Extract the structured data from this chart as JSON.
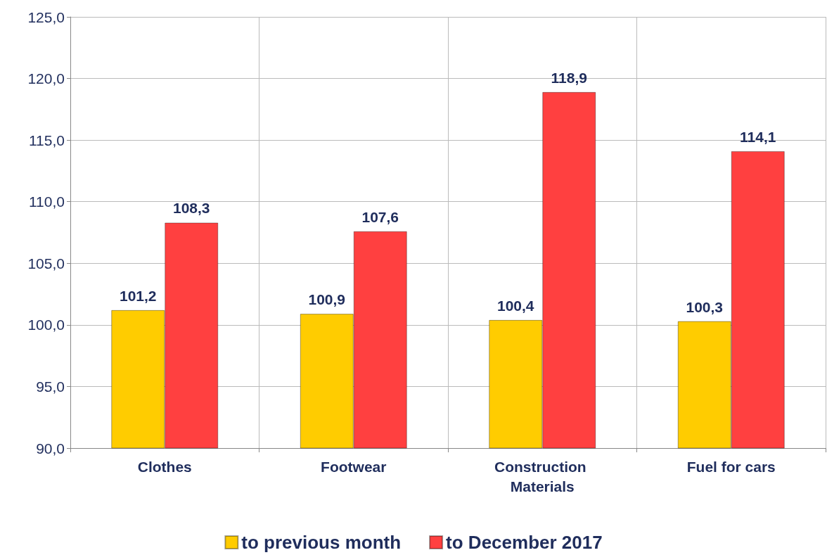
{
  "chart_data": {
    "type": "bar",
    "categories": [
      "Clothes",
      "Footwear",
      "Construction Materials",
      "Fuel for cars"
    ],
    "series": [
      {
        "name": "to previous month",
        "color": "#ffcc00",
        "values": [
          101.2,
          100.9,
          100.4,
          100.3
        ],
        "value_labels": [
          "101,2",
          "100,9",
          "100,4",
          "100,3"
        ]
      },
      {
        "name": "to December 2017",
        "color": "#ff4040",
        "values": [
          108.3,
          107.6,
          118.9,
          114.1
        ],
        "value_labels": [
          "108,3",
          "107,6",
          "118,9",
          "114,1"
        ]
      }
    ],
    "ylim": [
      90,
      125
    ],
    "yticks": [
      {
        "value": 90,
        "label": "90,0"
      },
      {
        "value": 95,
        "label": "95,0"
      },
      {
        "value": 100,
        "label": "100,0"
      },
      {
        "value": 105,
        "label": "105,0"
      },
      {
        "value": 110,
        "label": "110,0"
      },
      {
        "value": 115,
        "label": "115,0"
      },
      {
        "value": 120,
        "label": "120,0"
      },
      {
        "value": 125,
        "label": "125,0"
      }
    ],
    "grid": true,
    "legend": "bottom"
  }
}
